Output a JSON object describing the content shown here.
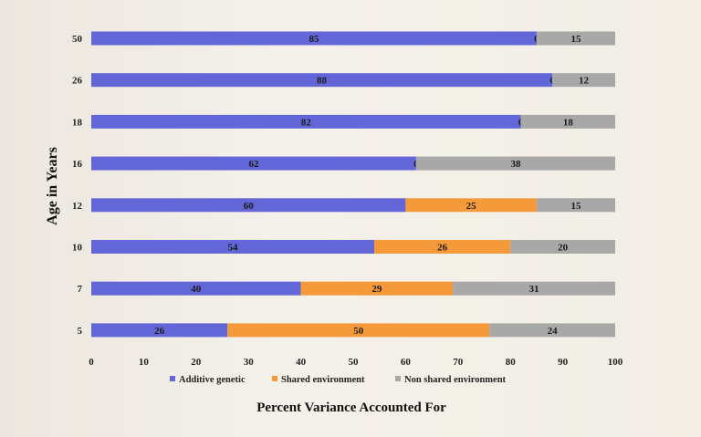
{
  "chart_data": {
    "type": "bar",
    "orientation": "horizontal",
    "stacked": true,
    "categories": [
      "5",
      "7",
      "10",
      "12",
      "16",
      "18",
      "26",
      "50"
    ],
    "series": [
      {
        "name": "Additive genetic",
        "color": "#6366d6",
        "values": [
          26,
          40,
          54,
          60,
          62,
          82,
          88,
          85
        ]
      },
      {
        "name": "Shared environment",
        "color": "#f59a3a",
        "values": [
          50,
          29,
          26,
          25,
          0,
          0,
          0,
          0
        ]
      },
      {
        "name": "Non shared environment",
        "color": "#a8a8a8",
        "values": [
          24,
          31,
          20,
          15,
          38,
          18,
          12,
          15
        ]
      }
    ],
    "x_ticks": [
      0,
      10,
      20,
      30,
      40,
      50,
      60,
      70,
      80,
      90,
      100
    ],
    "xlim": [
      0,
      100
    ],
    "xlabel": "Percent Variance Accounted For",
    "ylabel": "Age in Years",
    "legend_position": "bottom",
    "grid": false
  }
}
